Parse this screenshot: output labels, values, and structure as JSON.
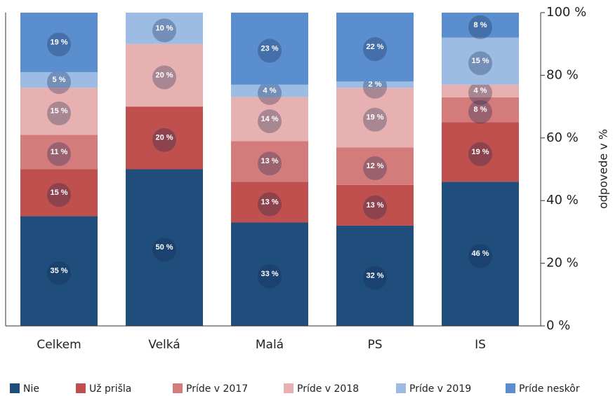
{
  "chart_data": {
    "type": "stacked_bar",
    "categories": [
      "Celkem",
      "Velká",
      "Malá",
      "PS",
      "IS"
    ],
    "series": [
      {
        "name": "Nie",
        "color": "#1f4e7d",
        "values": [
          35,
          50,
          33,
          32,
          46
        ],
        "value_labels": [
          "35 %",
          "50 %",
          "33 %",
          "32 %",
          "46 %"
        ]
      },
      {
        "name": "Už prišla",
        "color": "#c0504d",
        "values": [
          15,
          20,
          13,
          13,
          19
        ],
        "value_labels": [
          "15 %",
          "20 %",
          "13 %",
          "13 %",
          "19 %"
        ]
      },
      {
        "name": "Príde v 2017",
        "color": "#d47c7c",
        "values": [
          11,
          0,
          13,
          12,
          8
        ],
        "value_labels": [
          "11 %",
          null,
          "13 %",
          "12 %",
          "8 %"
        ]
      },
      {
        "name": "Príde v 2018",
        "color": "#e8b1b1",
        "values": [
          15,
          20,
          14,
          19,
          4
        ],
        "value_labels": [
          "15 %",
          "20 %",
          "14 %",
          "19 %",
          "4 %"
        ]
      },
      {
        "name": "Príde v 2019",
        "color": "#9dbce4",
        "values": [
          5,
          10,
          4,
          2,
          15
        ],
        "value_labels": [
          "5 %",
          "10 %",
          "4 %",
          "2 %",
          "15 %"
        ]
      },
      {
        "name": "Príde neskôr",
        "color": "#5b8ecf",
        "values": [
          19,
          0,
          23,
          22,
          8
        ],
        "value_labels": [
          "19 %",
          null,
          "23 %",
          "22 %",
          "8 %"
        ]
      }
    ],
    "y_label": "odpovede v %",
    "ylim": [
      0,
      100
    ],
    "yticks": [
      {
        "value": 0,
        "label": "0 %"
      },
      {
        "value": 20,
        "label": "20 %"
      },
      {
        "value": 40,
        "label": "40 %"
      },
      {
        "value": 60,
        "label": "60 %"
      },
      {
        "value": 80,
        "label": "80 %"
      },
      {
        "value": 100,
        "label": "100 %"
      }
    ],
    "legend": "bottom"
  }
}
